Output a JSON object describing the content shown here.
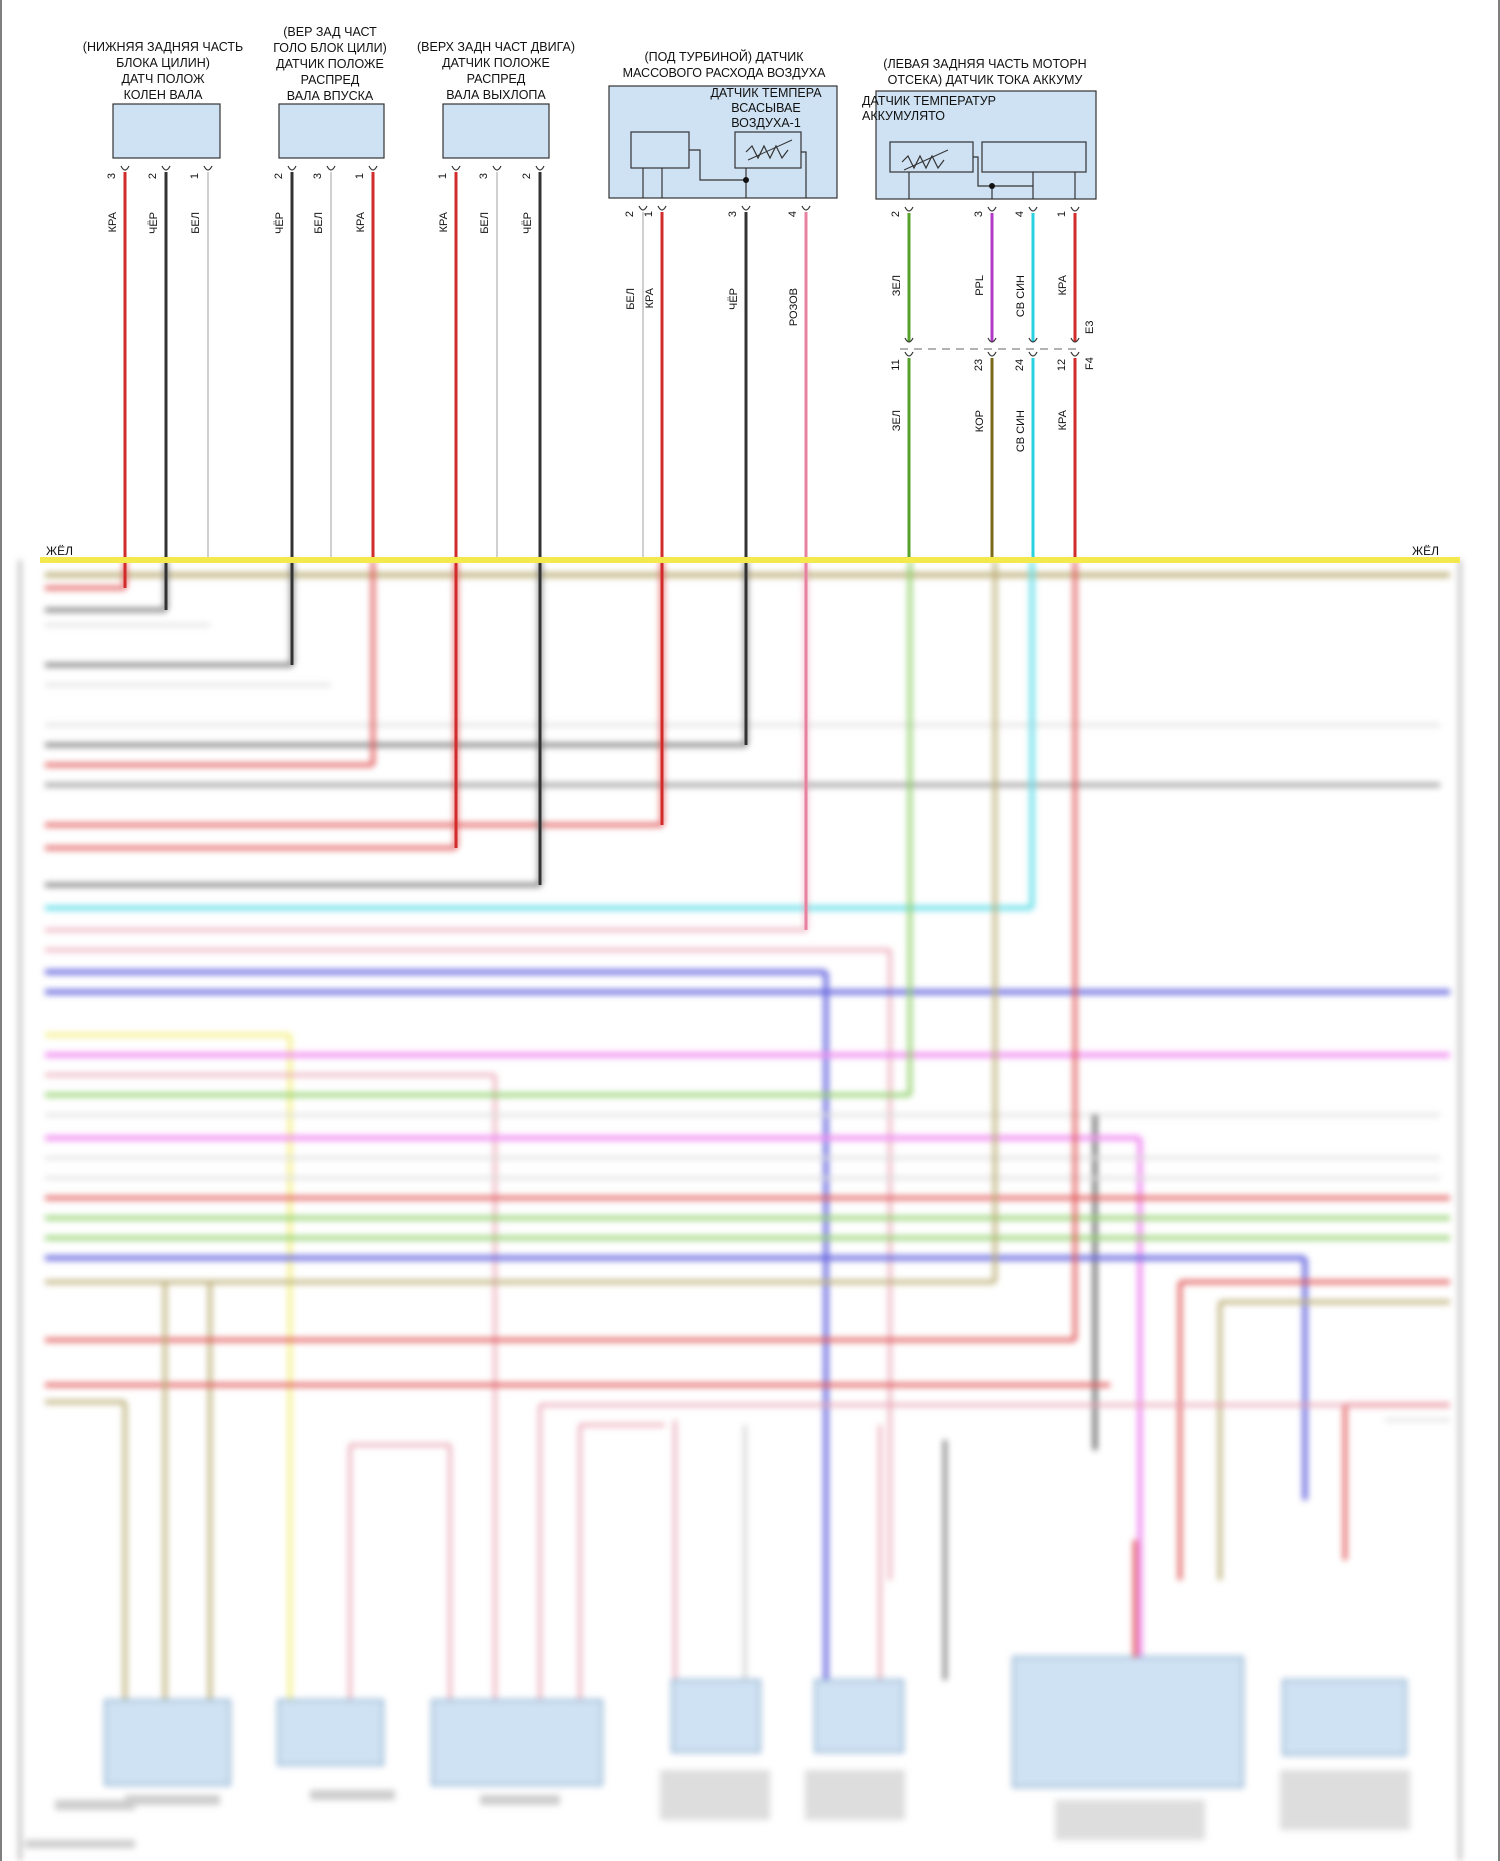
{
  "bus_label_left": "ЖЁЛ",
  "bus_label_right": "ЖЁЛ",
  "colors": {
    "yellow": "#f4e94c",
    "red": "#d22b2b",
    "black": "#333333",
    "white": "#d0d0d0",
    "green": "#56a12b",
    "purple": "#b13ac7",
    "cyan": "#29d0e0",
    "pink": "#e880a0",
    "brown": "#7a6a1a",
    "sensor_fill": "#cfe2f3"
  },
  "components": [
    {
      "id": "ckp",
      "title_lines": [
        "(НИЖНЯЯ ЗАДНЯЯ ЧАСТЬ",
        "БЛОКА ЦИЛИН)",
        "ДАТЧ ПОЛОЖ",
        "КОЛЕН ВАЛА"
      ],
      "pins": [
        {
          "pin": "3",
          "wire": "КРА",
          "color": "red"
        },
        {
          "pin": "2",
          "wire": "ЧЁР",
          "color": "black"
        },
        {
          "pin": "1",
          "wire": "БЕЛ",
          "color": "white"
        }
      ]
    },
    {
      "id": "cmp_intake",
      "title_lines": [
        "(ВЕР ЗАД ЧАСТ",
        "ГОЛО БЛОК ЦИЛИ)",
        "ДАТЧИК ПОЛОЖЕ",
        "РАСПРЕД",
        "ВАЛА ВПУСКА"
      ],
      "pins": [
        {
          "pin": "2",
          "wire": "ЧЁР",
          "color": "black"
        },
        {
          "pin": "3",
          "wire": "БЕЛ",
          "color": "white"
        },
        {
          "pin": "1",
          "wire": "КРА",
          "color": "red"
        }
      ]
    },
    {
      "id": "cmp_exhaust",
      "title_lines": [
        "(ВЕРХ ЗАДН ЧАСТ ДВИГА)",
        "ДАТЧИК ПОЛОЖЕ",
        "РАСПРЕД",
        "ВАЛА ВЫХЛОПА"
      ],
      "pins": [
        {
          "pin": "1",
          "wire": "КРА",
          "color": "red"
        },
        {
          "pin": "3",
          "wire": "БЕЛ",
          "color": "white"
        },
        {
          "pin": "2",
          "wire": "ЧЁР",
          "color": "black"
        }
      ]
    },
    {
      "id": "maf",
      "title_lines": [
        "(ПОД ТУРБИНОЙ) ДАТЧИК",
        "МАССОВОГО РАСХОДА ВОЗДУХА"
      ],
      "inner_lines": [
        "ДАТЧИК ТЕМПЕРА",
        "ВСАСЫВАЕ",
        "ВОЗДУХА-1"
      ],
      "pins": [
        {
          "pin": "2",
          "wire": "БЕЛ",
          "color": "white"
        },
        {
          "pin": "1",
          "wire": "КРА",
          "color": "red"
        },
        {
          "pin": "3",
          "wire": "ЧЁР",
          "color": "black"
        },
        {
          "pin": "4",
          "wire": "РОЗОВ",
          "color": "pink"
        }
      ]
    },
    {
      "id": "battery",
      "title_lines": [
        "(ЛЕВАЯ ЗАДНЯЯ ЧАСТЬ МОТОРН",
        "ОТСЕКА) ДАТЧИК ТОКА АККУМУ"
      ],
      "inner_lines": [
        "ДАТЧИК ТЕМПЕРАТУР",
        "АККУМУЛЯТО"
      ],
      "pins": [
        {
          "pin": "2",
          "wire": "ЗЕЛ",
          "color": "green"
        },
        {
          "pin": "3",
          "wire": "PPL",
          "color": "purple"
        },
        {
          "pin": "4",
          "wire": "СВ СИН",
          "color": "cyan"
        },
        {
          "pin": "1",
          "wire": "КРА",
          "color": "red"
        }
      ]
    }
  ],
  "connector": {
    "top_name": "E3",
    "bottom_name": "F4",
    "pins": [
      {
        "pin": "11",
        "wire": "ЗЕЛ",
        "color": "green"
      },
      {
        "pin": "23",
        "wire": "КОР",
        "color": "brown"
      },
      {
        "pin": "24",
        "wire": "СВ СИН",
        "color": "cyan"
      },
      {
        "pin": "12",
        "wire": "КРА",
        "color": "red"
      }
    ]
  }
}
